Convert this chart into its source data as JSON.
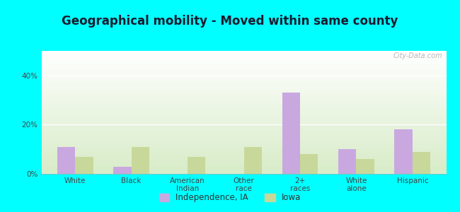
{
  "title": "Geographical mobility - Moved within same county",
  "categories": [
    "White",
    "Black",
    "American\nIndian",
    "Other\nrace",
    "2+\nraces",
    "White\nalone",
    "Hispanic"
  ],
  "independence_values": [
    11,
    3,
    0,
    0,
    33,
    10,
    18
  ],
  "iowa_values": [
    7,
    11,
    7,
    11,
    8,
    6,
    9
  ],
  "independence_color": "#c9a8e0",
  "iowa_color": "#c8d89a",
  "background_outer": "#00ffff",
  "ylim": [
    0,
    50
  ],
  "yticks": [
    0,
    20,
    40
  ],
  "ytick_labels": [
    "0%",
    "20%",
    "40%"
  ],
  "bar_width": 0.32,
  "legend_labels": [
    "Independence, IA",
    "Iowa"
  ],
  "watermark": "City-Data.com",
  "title_fontsize": 12,
  "tick_fontsize": 7.5,
  "legend_fontsize": 8.5
}
